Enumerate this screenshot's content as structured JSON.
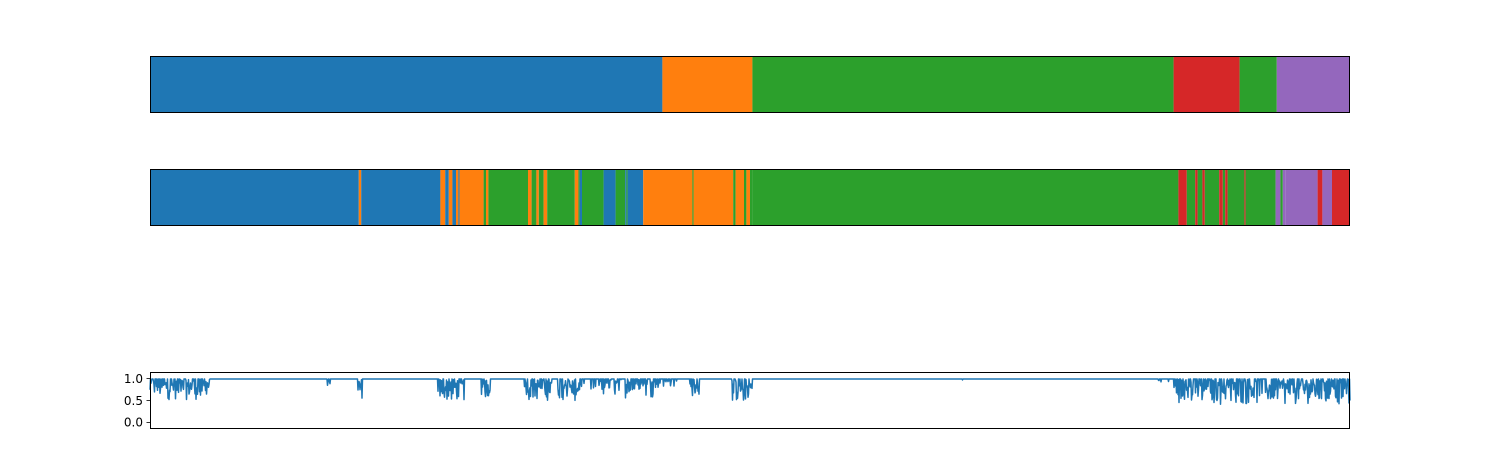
{
  "colors": {
    "blue": "#1f77b4",
    "orange": "#ff7f0e",
    "green": "#2ca02c",
    "red": "#d62728",
    "purple": "#9467bd"
  },
  "chart_data": [
    {
      "type": "segment-bar",
      "description_role": "true-labels",
      "xlim": [
        0,
        1000
      ],
      "segments": [
        {
          "start": 0,
          "end": 427,
          "color": "blue"
        },
        {
          "start": 427,
          "end": 502,
          "color": "orange"
        },
        {
          "start": 502,
          "end": 853,
          "color": "green"
        },
        {
          "start": 853,
          "end": 908,
          "color": "red"
        },
        {
          "start": 908,
          "end": 939,
          "color": "green"
        },
        {
          "start": 939,
          "end": 1000,
          "color": "purple"
        }
      ]
    },
    {
      "type": "segment-bar",
      "description_role": "predicted-labels",
      "xlim": [
        0,
        1000
      ],
      "segments": [
        {
          "start": 0,
          "end": 174,
          "color": "blue"
        },
        {
          "start": 174,
          "end": 176,
          "color": "orange"
        },
        {
          "start": 176,
          "end": 242,
          "color": "blue"
        },
        {
          "start": 242,
          "end": 246,
          "color": "orange"
        },
        {
          "start": 246,
          "end": 249,
          "color": "blue"
        },
        {
          "start": 249,
          "end": 252,
          "color": "orange"
        },
        {
          "start": 252,
          "end": 255,
          "color": "blue"
        },
        {
          "start": 255,
          "end": 257,
          "color": "orange"
        },
        {
          "start": 257,
          "end": 258,
          "color": "blue"
        },
        {
          "start": 258,
          "end": 278,
          "color": "orange"
        },
        {
          "start": 278,
          "end": 280,
          "color": "green"
        },
        {
          "start": 280,
          "end": 282,
          "color": "orange"
        },
        {
          "start": 282,
          "end": 315,
          "color": "green"
        },
        {
          "start": 315,
          "end": 318,
          "color": "orange"
        },
        {
          "start": 318,
          "end": 322,
          "color": "green"
        },
        {
          "start": 322,
          "end": 324,
          "color": "orange"
        },
        {
          "start": 324,
          "end": 328,
          "color": "green"
        },
        {
          "start": 328,
          "end": 331,
          "color": "orange"
        },
        {
          "start": 331,
          "end": 354,
          "color": "green"
        },
        {
          "start": 354,
          "end": 357,
          "color": "orange"
        },
        {
          "start": 357,
          "end": 358,
          "color": "green"
        },
        {
          "start": 358,
          "end": 360,
          "color": "blue"
        },
        {
          "start": 360,
          "end": 378,
          "color": "green"
        },
        {
          "start": 378,
          "end": 388,
          "color": "blue"
        },
        {
          "start": 388,
          "end": 396,
          "color": "green"
        },
        {
          "start": 396,
          "end": 397,
          "color": "blue"
        },
        {
          "start": 397,
          "end": 398,
          "color": "green"
        },
        {
          "start": 398,
          "end": 411,
          "color": "blue"
        },
        {
          "start": 411,
          "end": 452,
          "color": "orange"
        },
        {
          "start": 452,
          "end": 453,
          "color": "green"
        },
        {
          "start": 453,
          "end": 486,
          "color": "orange"
        },
        {
          "start": 486,
          "end": 488,
          "color": "green"
        },
        {
          "start": 488,
          "end": 495,
          "color": "orange"
        },
        {
          "start": 495,
          "end": 497,
          "color": "green"
        },
        {
          "start": 497,
          "end": 500,
          "color": "orange"
        },
        {
          "start": 500,
          "end": 502,
          "color": "green"
        },
        {
          "start": 502,
          "end": 857,
          "color": "green"
        },
        {
          "start": 857,
          "end": 864,
          "color": "red"
        },
        {
          "start": 864,
          "end": 871,
          "color": "green"
        },
        {
          "start": 871,
          "end": 873,
          "color": "red"
        },
        {
          "start": 873,
          "end": 877,
          "color": "green"
        },
        {
          "start": 877,
          "end": 879,
          "color": "red"
        },
        {
          "start": 879,
          "end": 891,
          "color": "green"
        },
        {
          "start": 891,
          "end": 894,
          "color": "red"
        },
        {
          "start": 894,
          "end": 896,
          "color": "green"
        },
        {
          "start": 896,
          "end": 898,
          "color": "red"
        },
        {
          "start": 898,
          "end": 912,
          "color": "green"
        },
        {
          "start": 912,
          "end": 913,
          "color": "red"
        },
        {
          "start": 913,
          "end": 938,
          "color": "green"
        },
        {
          "start": 938,
          "end": 942,
          "color": "purple"
        },
        {
          "start": 942,
          "end": 944,
          "color": "green"
        },
        {
          "start": 944,
          "end": 946,
          "color": "purple"
        },
        {
          "start": 946,
          "end": 973,
          "color": "purple"
        },
        {
          "start": 973,
          "end": 977,
          "color": "red"
        },
        {
          "start": 977,
          "end": 985,
          "color": "purple"
        },
        {
          "start": 985,
          "end": 1000,
          "color": "red"
        }
      ]
    },
    {
      "type": "line",
      "description_role": "confidence",
      "xlim": [
        0,
        1000
      ],
      "ylim": [
        -0.15,
        1.15
      ],
      "yticks": [
        0.0,
        0.5,
        1.0
      ],
      "ytick_labels": [
        "0.0",
        "0.5",
        "1.0"
      ],
      "color": "blue",
      "dips": [
        {
          "start": 0,
          "end": 50,
          "min": 0.5,
          "density": 0.7
        },
        {
          "start": 147,
          "end": 150,
          "min": 0.82,
          "density": 0.5
        },
        {
          "start": 173,
          "end": 177,
          "min": 0.5,
          "density": 1.0
        },
        {
          "start": 240,
          "end": 262,
          "min": 0.45,
          "density": 0.8
        },
        {
          "start": 276,
          "end": 284,
          "min": 0.5,
          "density": 0.8
        },
        {
          "start": 312,
          "end": 335,
          "min": 0.48,
          "density": 0.8
        },
        {
          "start": 340,
          "end": 362,
          "min": 0.5,
          "density": 0.8
        },
        {
          "start": 350,
          "end": 358,
          "min": 0.45,
          "density": 0.9
        },
        {
          "start": 366,
          "end": 420,
          "min": 0.55,
          "density": 0.5
        },
        {
          "start": 420,
          "end": 440,
          "min": 0.75,
          "density": 0.3
        },
        {
          "start": 450,
          "end": 458,
          "min": 0.55,
          "density": 0.7
        },
        {
          "start": 485,
          "end": 502,
          "min": 0.42,
          "density": 0.9
        },
        {
          "start": 675,
          "end": 678,
          "min": 0.95,
          "density": 0.3
        },
        {
          "start": 840,
          "end": 850,
          "min": 0.85,
          "density": 0.3
        },
        {
          "start": 853,
          "end": 940,
          "min": 0.38,
          "density": 0.7
        },
        {
          "start": 940,
          "end": 1000,
          "min": 0.38,
          "density": 0.8
        }
      ]
    }
  ]
}
